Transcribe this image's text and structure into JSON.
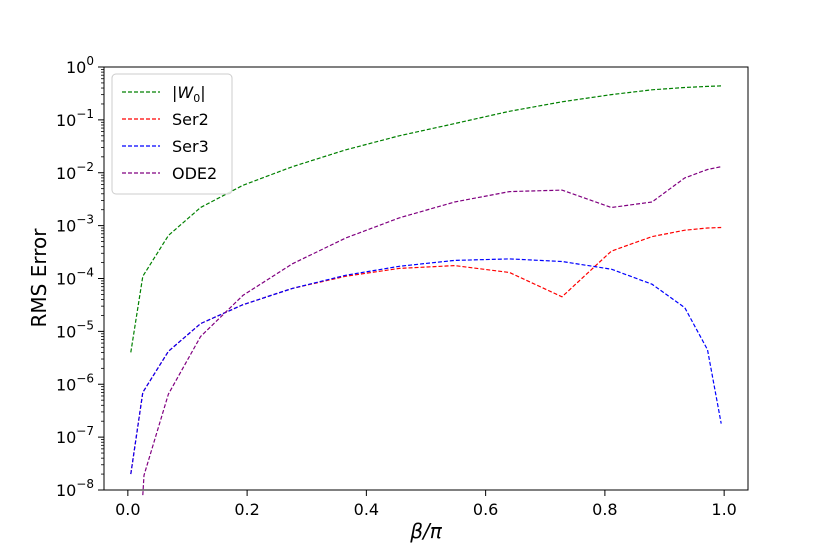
{
  "chart_data": {
    "type": "line",
    "title": "",
    "xlabel": "β/π",
    "ylabel": "RMS Error",
    "xlim": [
      -0.04,
      1.04
    ],
    "ylim": [
      1e-08,
      1
    ],
    "yscale": "log",
    "grid": false,
    "legend_position": "upper-left",
    "x_ticks": [
      {
        "value": 0.0,
        "label": "0.0"
      },
      {
        "value": 0.2,
        "label": "0.2"
      },
      {
        "value": 0.4,
        "label": "0.4"
      },
      {
        "value": 0.6,
        "label": "0.6"
      },
      {
        "value": 0.8,
        "label": "0.8"
      },
      {
        "value": 1.0,
        "label": "1.0"
      }
    ],
    "y_ticks": [
      {
        "value": 1e-08,
        "base": "10",
        "exp": "−8"
      },
      {
        "value": 1e-07,
        "base": "10",
        "exp": "−7"
      },
      {
        "value": 1e-06,
        "base": "10",
        "exp": "−6"
      },
      {
        "value": 1e-05,
        "base": "10",
        "exp": "−5"
      },
      {
        "value": 0.0001,
        "base": "10",
        "exp": "−4"
      },
      {
        "value": 0.001,
        "base": "10",
        "exp": "−3"
      },
      {
        "value": 0.01,
        "base": "10",
        "exp": "−2"
      },
      {
        "value": 0.1,
        "base": "10",
        "exp": "−1"
      },
      {
        "value": 1,
        "base": "10",
        "exp": "0"
      }
    ],
    "series": [
      {
        "name": "|W0|",
        "label_main": "|W",
        "label_sub": "0",
        "label_end": "|",
        "color": "#008000",
        "points": [
          [
            0.005,
            4e-06
          ],
          [
            0.025,
            0.00011
          ],
          [
            0.068,
            0.00065
          ],
          [
            0.122,
            0.0022
          ],
          [
            0.193,
            0.0058
          ],
          [
            0.276,
            0.013
          ],
          [
            0.365,
            0.027
          ],
          [
            0.455,
            0.05
          ],
          [
            0.548,
            0.085
          ],
          [
            0.64,
            0.145
          ],
          [
            0.728,
            0.22
          ],
          [
            0.811,
            0.3
          ],
          [
            0.879,
            0.37
          ],
          [
            0.934,
            0.41
          ],
          [
            0.972,
            0.43
          ],
          [
            0.995,
            0.44
          ]
        ]
      },
      {
        "name": "Ser2",
        "color": "#ff0000",
        "points": [
          [
            0.005,
            2e-08
          ],
          [
            0.025,
            7e-07
          ],
          [
            0.068,
            4.2e-06
          ],
          [
            0.122,
            1.4e-05
          ],
          [
            0.193,
            3.2e-05
          ],
          [
            0.276,
            6.5e-05
          ],
          [
            0.365,
            0.00011
          ],
          [
            0.455,
            0.000155
          ],
          [
            0.548,
            0.000175
          ],
          [
            0.64,
            0.00013
          ],
          [
            0.728,
            4.5e-05
          ],
          [
            0.811,
            0.00033
          ],
          [
            0.879,
            0.00062
          ],
          [
            0.934,
            0.00082
          ],
          [
            0.972,
            0.0009
          ],
          [
            0.995,
            0.00092
          ]
        ]
      },
      {
        "name": "Ser3",
        "color": "#0000ff",
        "points": [
          [
            0.005,
            2e-08
          ],
          [
            0.025,
            7e-07
          ],
          [
            0.068,
            4.2e-06
          ],
          [
            0.122,
            1.4e-05
          ],
          [
            0.193,
            3.2e-05
          ],
          [
            0.276,
            6.5e-05
          ],
          [
            0.365,
            0.000115
          ],
          [
            0.455,
            0.00017
          ],
          [
            0.548,
            0.00022
          ],
          [
            0.64,
            0.000235
          ],
          [
            0.728,
            0.00021
          ],
          [
            0.811,
            0.00015
          ],
          [
            0.879,
            7.8e-05
          ],
          [
            0.934,
            2.8e-05
          ],
          [
            0.972,
            4.5e-06
          ],
          [
            0.995,
            1.8e-07
          ]
        ]
      },
      {
        "name": "ODE2",
        "color": "#800080",
        "points": [
          [
            0.025,
            8e-09
          ],
          [
            0.027,
            1.9e-08
          ],
          [
            0.068,
            6.5e-07
          ],
          [
            0.122,
            8e-06
          ],
          [
            0.193,
            4.8e-05
          ],
          [
            0.276,
            0.00019
          ],
          [
            0.365,
            0.00058
          ],
          [
            0.455,
            0.0014
          ],
          [
            0.548,
            0.0028
          ],
          [
            0.64,
            0.0044
          ],
          [
            0.728,
            0.0047
          ],
          [
            0.811,
            0.0022
          ],
          [
            0.879,
            0.0028
          ],
          [
            0.934,
            0.008
          ],
          [
            0.972,
            0.0115
          ],
          [
            0.995,
            0.013
          ]
        ]
      }
    ]
  }
}
